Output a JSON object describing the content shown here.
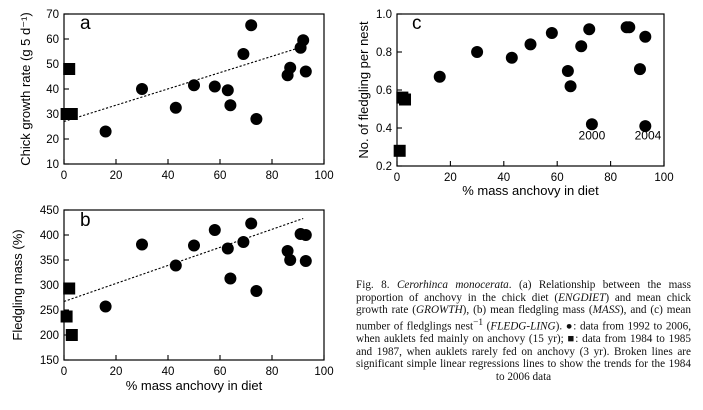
{
  "chart_data": [
    {
      "panel": "a",
      "type": "scatter",
      "xlabel": "",
      "ylabel": "Chick growth rate (g 5 d⁻¹)",
      "xlim": [
        0,
        100
      ],
      "ylim": [
        10,
        70
      ],
      "xticks": [
        0,
        20,
        40,
        60,
        80,
        100
      ],
      "yticks": [
        10,
        20,
        30,
        40,
        50,
        60,
        70
      ],
      "series": [
        {
          "marker": "circle",
          "x": [
            16,
            30,
            43,
            50,
            58,
            63,
            64,
            69,
            72,
            74,
            86,
            87,
            91,
            92,
            93
          ],
          "y": [
            23,
            40,
            32.5,
            41.5,
            41,
            39.5,
            33.5,
            54,
            65.5,
            28,
            45.5,
            48.5,
            56.5,
            59.5,
            47
          ]
        },
        {
          "marker": "square",
          "x": [
            1,
            2,
            3
          ],
          "y": [
            30,
            48,
            30
          ]
        }
      ],
      "trendline": {
        "style": "dashed",
        "x": [
          0,
          92
        ],
        "y": [
          27,
          57
        ]
      }
    },
    {
      "panel": "b",
      "type": "scatter",
      "xlabel": "% mass anchovy in diet",
      "ylabel": "Fledgling mass (%)",
      "xlim": [
        0,
        100
      ],
      "ylim": [
        150,
        450
      ],
      "xticks": [
        0,
        20,
        40,
        60,
        80,
        100
      ],
      "yticks": [
        150,
        200,
        250,
        300,
        350,
        400,
        450
      ],
      "series": [
        {
          "marker": "circle",
          "x": [
            16,
            30,
            43,
            50,
            58,
            63,
            64,
            69,
            72,
            74,
            86,
            87,
            91,
            93,
            93
          ],
          "y": [
            257,
            381,
            339,
            379,
            410,
            373,
            313,
            386,
            423,
            288,
            368,
            350,
            402,
            400,
            348
          ]
        },
        {
          "marker": "square",
          "x": [
            1,
            2,
            3
          ],
          "y": [
            237,
            293,
            200
          ]
        }
      ],
      "trendline": {
        "style": "dashed",
        "x": [
          0,
          92
        ],
        "y": [
          267,
          433
        ]
      }
    },
    {
      "panel": "c",
      "type": "scatter",
      "xlabel": "% mass anchovy in diet",
      "ylabel": "No. of fledgling per nest",
      "xlim": [
        0,
        100
      ],
      "ylim": [
        0.2,
        1.0
      ],
      "xticks": [
        0,
        20,
        40,
        60,
        80,
        100
      ],
      "yticks": [
        0.2,
        0.4,
        0.6,
        0.8,
        1.0
      ],
      "series": [
        {
          "marker": "circle",
          "x": [
            16,
            30,
            43,
            50,
            58,
            64,
            65,
            69,
            72,
            73,
            86,
            87,
            91,
            93,
            93
          ],
          "y": [
            0.67,
            0.8,
            0.77,
            0.84,
            0.9,
            0.7,
            0.62,
            0.83,
            0.92,
            0.42,
            0.93,
            0.93,
            0.71,
            0.88,
            0.41
          ]
        },
        {
          "marker": "square",
          "x": [
            1,
            2,
            3
          ],
          "y": [
            0.28,
            0.56,
            0.55
          ]
        }
      ],
      "annotations": [
        {
          "text": "2000",
          "x": 73,
          "y": 0.36
        },
        {
          "text": "2004",
          "x": 94,
          "y": 0.36
        }
      ]
    }
  ],
  "caption": {
    "t1": "Fig. 8. ",
    "species": "Cerorhinca monocerata",
    "t2": ". (a) Relationship between the mass proportion of anchovy in the chick diet (",
    "v1": "ENGDIET",
    "t3": ") and mean chick growth rate (",
    "v2": "GROWTH",
    "t4": "), (b) mean fledgling mass (",
    "v3": "MASS",
    "t5": "), and (c) mean number of fledglings nest",
    "sup": "−1",
    "t6": " (",
    "v4": "FLEDG-LING",
    "t7": "). ●: data from 1992 to 2006, when auklets fed mainly on anchovy (15 yr); ■: data from 1984 to 1985 and 1987, when auklets rarely fed on anchovy (3 yr). Broken lines are significant simple linear regressions lines to show the trends for the 1984 to 2006 data"
  }
}
